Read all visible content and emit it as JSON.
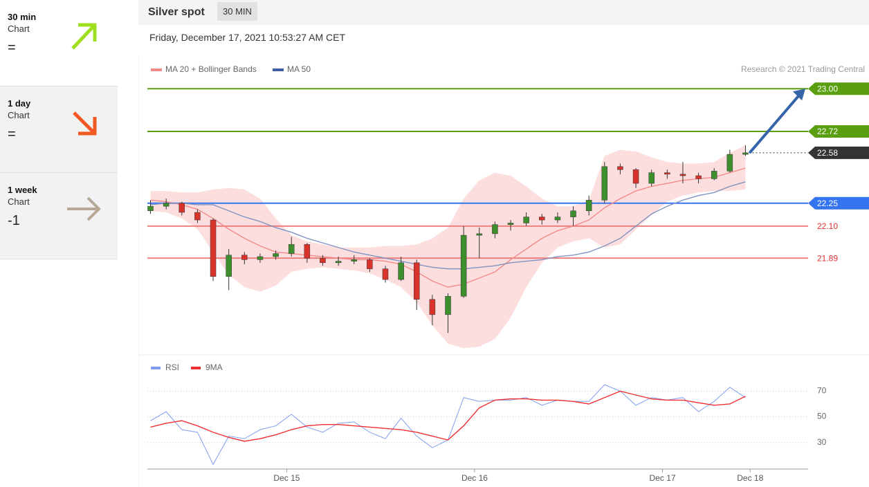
{
  "sidebar": [
    {
      "period": "30 min",
      "label": "Chart",
      "signal": "="
    },
    {
      "period": "1 day",
      "label": "Chart",
      "signal": "="
    },
    {
      "period": "1 week",
      "label": "Chart",
      "signal": "-1"
    }
  ],
  "header": {
    "title": "Silver spot",
    "timeframe": "30 MIN",
    "date": "Friday, December 17, 2021 10:53:27 AM CET"
  },
  "chart_data": [
    {
      "type": "candlestick",
      "credit": "Research © 2021 Trading Central",
      "xlim": [
        -0.2,
        42
      ],
      "ylim": [
        21.27,
        23.06
      ],
      "open": [
        22.2,
        22.23,
        22.25,
        22.19,
        22.14,
        21.77,
        21.91,
        21.88,
        21.9,
        21.92,
        21.98,
        21.89,
        21.86,
        21.87,
        21.88,
        21.82,
        21.75,
        21.86,
        21.62,
        21.52,
        21.64,
        22.04,
        22.05,
        22.11,
        22.12,
        22.16,
        22.14,
        22.16,
        22.2,
        22.27,
        22.49,
        22.47,
        22.38,
        22.45,
        22.44,
        22.43,
        22.41,
        22.46,
        22.57
      ],
      "high": [
        22.27,
        22.28,
        22.26,
        22.21,
        22.15,
        21.95,
        21.93,
        21.92,
        21.94,
        22.03,
        21.99,
        21.91,
        21.9,
        21.91,
        21.89,
        21.84,
        21.9,
        21.88,
        21.65,
        21.66,
        22.1,
        22.09,
        22.13,
        22.14,
        22.19,
        22.18,
        22.19,
        22.23,
        22.3,
        22.52,
        22.51,
        22.48,
        22.47,
        22.47,
        22.52,
        22.45,
        22.48,
        22.6,
        22.63
      ],
      "low": [
        22.18,
        22.21,
        22.17,
        22.12,
        21.74,
        21.68,
        21.85,
        21.86,
        21.88,
        21.9,
        21.86,
        21.84,
        21.84,
        21.85,
        21.8,
        21.73,
        21.74,
        21.55,
        21.45,
        21.4,
        21.63,
        21.89,
        22.02,
        22.07,
        22.1,
        22.11,
        22.12,
        22.1,
        22.17,
        22.25,
        22.44,
        22.35,
        22.36,
        22.41,
        22.38,
        22.38,
        22.4,
        22.45,
        22.56
      ],
      "close": [
        22.23,
        22.25,
        22.19,
        22.14,
        21.77,
        21.91,
        21.88,
        21.9,
        21.92,
        21.98,
        21.89,
        21.86,
        21.87,
        21.88,
        21.82,
        21.75,
        21.86,
        21.62,
        21.52,
        21.64,
        22.04,
        22.05,
        22.11,
        22.12,
        22.16,
        22.14,
        22.16,
        22.2,
        22.27,
        22.49,
        22.47,
        22.38,
        22.45,
        22.44,
        22.43,
        22.41,
        22.46,
        22.57,
        22.58
      ],
      "up_color": "#3c8f2c",
      "down_color": "#d8322a",
      "series": [
        {
          "name": "MA 20 + Bollinger Bands",
          "color": "#f28a8a",
          "band_color": "#fddede",
          "values": [
            22.27,
            22.26,
            22.24,
            22.21,
            22.15,
            22.08,
            22.02,
            21.97,
            21.93,
            21.92,
            21.91,
            21.9,
            21.89,
            21.88,
            21.88,
            21.87,
            21.85,
            21.8,
            21.74,
            21.7,
            21.72,
            21.76,
            21.8,
            21.88,
            21.95,
            22.02,
            22.07,
            22.1,
            22.14,
            22.22,
            22.28,
            22.33,
            22.36,
            22.38,
            22.4,
            22.41,
            22.42,
            22.45,
            22.48
          ],
          "upper": [
            22.33,
            22.33,
            22.32,
            22.32,
            22.34,
            22.35,
            22.34,
            22.28,
            22.15,
            22.04,
            22.0,
            21.98,
            21.96,
            21.96,
            21.96,
            21.97,
            21.97,
            21.98,
            22.02,
            22.09,
            22.28,
            22.4,
            22.45,
            22.43,
            22.36,
            22.28,
            22.23,
            22.23,
            22.27,
            22.56,
            22.6,
            22.59,
            22.55,
            22.52,
            22.51,
            22.51,
            22.52,
            22.58,
            22.63
          ],
          "lower": [
            22.2,
            22.19,
            22.15,
            22.08,
            21.93,
            21.78,
            21.7,
            21.67,
            21.71,
            21.8,
            21.82,
            21.83,
            21.82,
            21.81,
            21.79,
            21.75,
            21.7,
            21.6,
            21.45,
            21.33,
            21.3,
            21.31,
            21.36,
            21.5,
            21.7,
            21.86,
            21.96,
            22.0,
            22.02,
            21.96,
            21.98,
            22.08,
            22.17,
            22.26,
            22.3,
            22.32,
            22.33,
            22.33,
            22.34
          ]
        },
        {
          "name": "MA 50",
          "color": "#7f93c2",
          "legend_color": "#3d5da8",
          "values": [
            22.24,
            22.25,
            22.25,
            22.24,
            22.24,
            22.2,
            22.16,
            22.13,
            22.09,
            22.06,
            22.02,
            21.99,
            21.96,
            21.93,
            21.91,
            21.89,
            21.87,
            21.85,
            21.83,
            21.82,
            21.82,
            21.83,
            21.84,
            21.86,
            21.87,
            21.88,
            21.9,
            21.91,
            21.93,
            21.97,
            22.02,
            22.1,
            22.18,
            22.23,
            22.27,
            22.3,
            22.32,
            22.36,
            22.39
          ]
        }
      ],
      "levels": [
        {
          "value": 23.0,
          "label": "23.00",
          "color": "#5a9f10",
          "tag": true
        },
        {
          "value": 22.72,
          "label": "22.72",
          "color": "#5a9f10",
          "tag": true
        },
        {
          "value": 22.58,
          "label": "22.58",
          "color": "#333333",
          "tag": true,
          "dotted": true
        },
        {
          "value": 22.25,
          "label": "22.25",
          "color": "#3474ee",
          "tag": true
        },
        {
          "value": 22.1,
          "label": "22.10",
          "color": "#f08080",
          "tag": false
        },
        {
          "value": 21.89,
          "label": "21.89",
          "color": "#f08080",
          "tag": false
        }
      ]
    },
    {
      "type": "line",
      "xlim": [
        -0.2,
        42
      ],
      "ylim": [
        11,
        81
      ],
      "yticks": [
        30,
        50,
        70
      ],
      "grid": true,
      "xticks": [
        {
          "value": 8.7,
          "label": "Dec 15"
        },
        {
          "value": 20.7,
          "label": "Dec 16"
        },
        {
          "value": 32.7,
          "label": "Dec 17"
        },
        {
          "value": 38.3,
          "label": "Dec 18"
        }
      ],
      "series": [
        {
          "name": "RSI",
          "color": "#7f9cf0",
          "values": [
            47,
            54,
            40,
            38,
            13,
            35,
            33,
            40,
            43,
            52,
            42,
            38,
            45,
            46,
            38,
            33,
            49,
            35,
            26,
            32,
            65,
            62,
            63,
            63,
            65,
            59,
            63,
            62,
            62,
            75,
            70,
            59,
            65,
            63,
            65,
            54,
            62,
            73,
            65
          ]
        },
        {
          "name": "9MA",
          "color": "#f03030",
          "values": [
            42,
            45,
            47,
            43,
            38,
            34,
            31,
            33,
            36,
            40,
            43,
            44,
            44,
            43,
            42,
            41,
            40,
            38,
            35,
            32,
            43,
            57,
            63,
            64,
            64,
            63,
            63,
            62,
            60,
            65,
            70,
            67,
            64,
            63,
            63,
            61,
            59,
            60,
            66
          ]
        }
      ]
    }
  ]
}
